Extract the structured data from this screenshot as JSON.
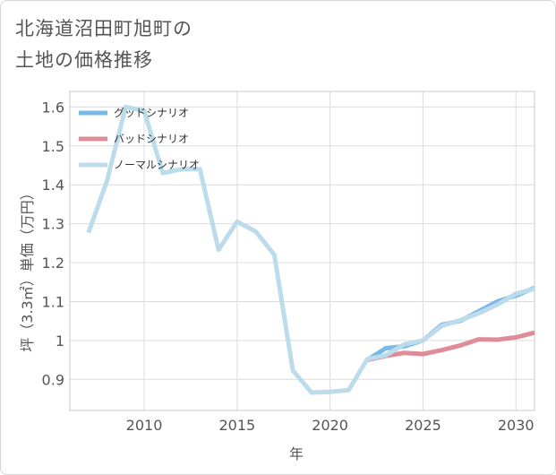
{
  "chart_data": {
    "type": "line",
    "title": "北海道沼田町旭町の土地の価格推移",
    "title_lines": [
      "北海道沼田町旭町の",
      "土地の価格推移"
    ],
    "xlabel": "年",
    "ylabel": "坪（3.3㎡）単価（万円）",
    "xlim": [
      2006,
      2031
    ],
    "ylim": [
      0.82,
      1.64
    ],
    "xticks": [
      2010,
      2015,
      2020,
      2025,
      2030
    ],
    "yticks": [
      0.9,
      1,
      1.1,
      1.2,
      1.3,
      1.4,
      1.5,
      1.6
    ],
    "ytick_labels": [
      "0.9",
      "1",
      "1.1",
      "1.2",
      "1.3",
      "1.4",
      "1.5",
      "1.6"
    ],
    "legend_position": "top-left",
    "series": [
      {
        "name": "グッドシナリオ",
        "color": "#7ab8e8",
        "x": [
          2022,
          2023,
          2024,
          2025,
          2026,
          2027,
          2028,
          2029,
          2030,
          2031
        ],
        "values": [
          0.95,
          0.98,
          0.985,
          1.0,
          1.04,
          1.05,
          1.075,
          1.1,
          1.115,
          1.135
        ]
      },
      {
        "name": "バッドシナリオ",
        "color": "#de8c99",
        "x": [
          2022,
          2023,
          2024,
          2025,
          2026,
          2027,
          2028,
          2029,
          2030,
          2031
        ],
        "values": [
          0.95,
          0.96,
          0.968,
          0.965,
          0.975,
          0.987,
          1.003,
          1.002,
          1.008,
          1.02
        ]
      },
      {
        "name": "ノーマルシナリオ",
        "color": "#bcdcec",
        "x": [
          2007,
          2008,
          2009,
          2010,
          2011,
          2012,
          2013,
          2014,
          2015,
          2016,
          2017,
          2018,
          2019,
          2020,
          2021,
          2022,
          2023,
          2024,
          2025,
          2026,
          2027,
          2028,
          2029,
          2030,
          2031
        ],
        "values": [
          1.277,
          1.41,
          1.6,
          1.59,
          1.43,
          1.44,
          1.44,
          1.233,
          1.305,
          1.28,
          1.22,
          0.923,
          0.866,
          0.868,
          0.872,
          0.952,
          0.962,
          0.99,
          1.0,
          1.037,
          1.052,
          1.07,
          1.092,
          1.12,
          1.133
        ]
      }
    ]
  }
}
